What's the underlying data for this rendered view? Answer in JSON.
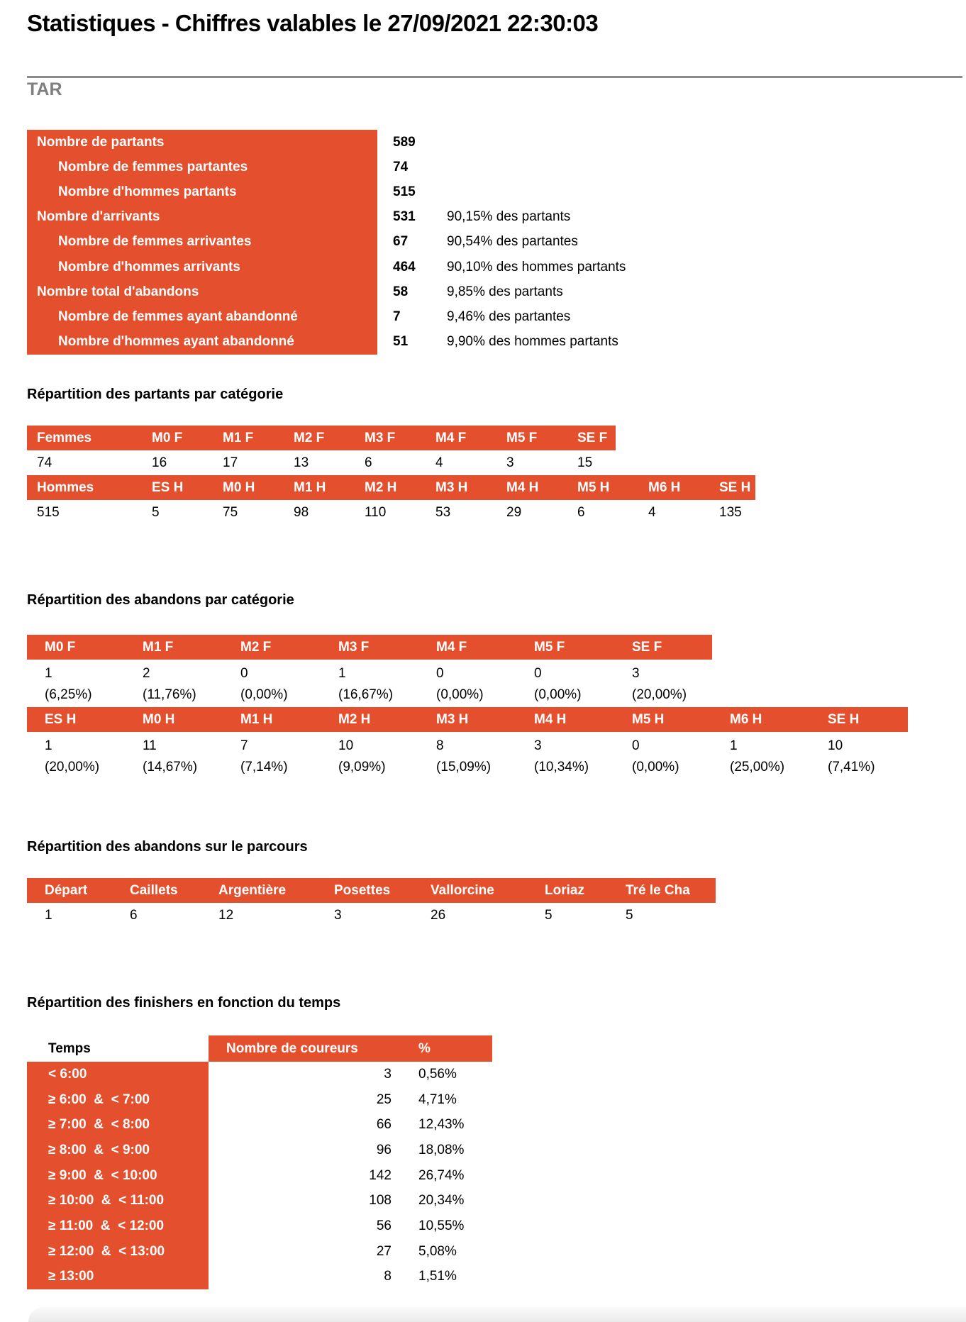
{
  "page": {
    "title": "Statistiques - Chiffres valables le 27/09/2021 22:30:03",
    "race": "TAR"
  },
  "colors": {
    "accent": "#E4502E",
    "race_heading_gray": "#7F7F7F"
  },
  "summary": {
    "rows": [
      {
        "label": "Nombre de partants",
        "indent": false,
        "value": "589",
        "note": ""
      },
      {
        "label": "Nombre de femmes partantes",
        "indent": true,
        "value": "74",
        "note": ""
      },
      {
        "label": "Nombre d'hommes partants",
        "indent": true,
        "value": "515",
        "note": ""
      },
      {
        "label": "Nombre d'arrivants",
        "indent": false,
        "value": "531",
        "note": "90,15% des partants"
      },
      {
        "label": "Nombre de femmes arrivantes",
        "indent": true,
        "value": "67",
        "note": "90,54% des partantes"
      },
      {
        "label": "Nombre d'hommes arrivants",
        "indent": true,
        "value": "464",
        "note": "90,10% des hommes partants"
      },
      {
        "label": "Nombre total d'abandons",
        "indent": false,
        "value": "58",
        "note": "9,85% des partants"
      },
      {
        "label": "Nombre de femmes ayant abandonné",
        "indent": true,
        "value": "7",
        "note": "9,46% des partantes"
      },
      {
        "label": "Nombre d'hommes ayant abandonné",
        "indent": true,
        "value": "51",
        "note": "9,90% des hommes partants"
      }
    ]
  },
  "partants": {
    "heading": "Répartition des partants par catégorie",
    "femmes": {
      "headers": [
        "Femmes",
        "M0 F",
        "M1 F",
        "M2 F",
        "M3 F",
        "M4 F",
        "M5 F",
        "SE F"
      ],
      "values": [
        "74",
        "16",
        "17",
        "13",
        "6",
        "4",
        "3",
        "15"
      ]
    },
    "hommes": {
      "headers": [
        "Hommes",
        "ES H",
        "M0 H",
        "M1 H",
        "M2 H",
        "M3 H",
        "M4 H",
        "M5 H",
        "M6 H",
        "SE H"
      ],
      "values": [
        "515",
        "5",
        "75",
        "98",
        "110",
        "53",
        "29",
        "6",
        "4",
        "135"
      ]
    }
  },
  "abandons": {
    "heading": "Répartition des abandons par catégorie",
    "femmes": {
      "headers": [
        "M0 F",
        "M1 F",
        "M2 F",
        "M3 F",
        "M4 F",
        "M5 F",
        "SE F"
      ],
      "values": [
        "1",
        "2",
        "0",
        "1",
        "0",
        "0",
        "3"
      ],
      "pcts": [
        "(6,25%)",
        "(11,76%)",
        "(0,00%)",
        "(16,67%)",
        "(0,00%)",
        "(0,00%)",
        "(20,00%)"
      ]
    },
    "hommes": {
      "headers": [
        "ES H",
        "M0 H",
        "M1 H",
        "M2 H",
        "M3 H",
        "M4 H",
        "M5 H",
        "M6 H",
        "SE H"
      ],
      "values": [
        "1",
        "11",
        "7",
        "10",
        "8",
        "3",
        "0",
        "1",
        "10"
      ],
      "pcts": [
        "(20,00%)",
        "(14,67%)",
        "(7,14%)",
        "(9,09%)",
        "(15,09%)",
        "(10,34%)",
        "(0,00%)",
        "(25,00%)",
        "(7,41%)"
      ]
    }
  },
  "parcours": {
    "heading": "Répartition des abandons sur le parcours",
    "headers": [
      "Départ",
      "Caillets",
      "Argentière",
      "Posettes",
      "Vallorcine",
      "Loriaz",
      "Tré le Cha"
    ],
    "values": [
      "1",
      "6",
      "12",
      "3",
      "26",
      "5",
      "5"
    ]
  },
  "finishers": {
    "heading": "Répartition des finishers en fonction du temps",
    "col_time": "Temps",
    "col_count": "Nombre de coureurs",
    "col_pct": "%",
    "rows": [
      {
        "time": "< 6:00",
        "count": "3",
        "pct": "0,56%"
      },
      {
        "time": "≥ 6:00  &  < 7:00",
        "count": "25",
        "pct": "4,71%"
      },
      {
        "time": "≥ 7:00  &  < 8:00",
        "count": "66",
        "pct": "12,43%"
      },
      {
        "time": "≥ 8:00  &  < 9:00",
        "count": "96",
        "pct": "18,08%"
      },
      {
        "time": "≥ 9:00  &  < 10:00",
        "count": "142",
        "pct": "26,74%"
      },
      {
        "time": "≥ 10:00  &  < 11:00",
        "count": "108",
        "pct": "20,34%"
      },
      {
        "time": "≥ 11:00  &  < 12:00",
        "count": "56",
        "pct": "10,55%"
      },
      {
        "time": "≥ 12:00  &  < 13:00",
        "count": "27",
        "pct": "5,08%"
      },
      {
        "time": "≥ 13:00",
        "count": "8",
        "pct": "1,51%"
      }
    ]
  }
}
